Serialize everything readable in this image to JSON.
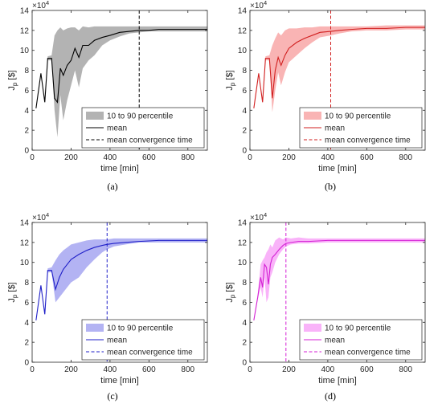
{
  "chart_data": [
    {
      "type": "area",
      "caption": "(a)",
      "x_exponent_label": "×10",
      "y_exponent": "4",
      "xlabel": "time [min]",
      "ylabel": "J",
      "ylabel_sub": "p",
      "ylabel_unit": " [$]",
      "xlim": [
        0,
        900
      ],
      "ylim": [
        0,
        14
      ],
      "xticks": [
        0,
        200,
        400,
        600,
        800
      ],
      "yticks": [
        0,
        2,
        4,
        6,
        8,
        10,
        12,
        14
      ],
      "convergence_time": 550,
      "colors": {
        "fill": "#b3b3b3",
        "line": "#000000"
      },
      "legend": {
        "placement": "bottom-right",
        "entries": [
          "10 to 90 percentile",
          "mean",
          "mean convergence time"
        ]
      },
      "mean": {
        "x": [
          20,
          45,
          65,
          80,
          100,
          115,
          130,
          145,
          160,
          180,
          200,
          220,
          240,
          260,
          290,
          320,
          360,
          400,
          450,
          500,
          550,
          600,
          650,
          700,
          800,
          900
        ],
        "y": [
          4.2,
          7.7,
          4.8,
          9.2,
          9.2,
          5.2,
          4.8,
          8.2,
          7.5,
          8.5,
          9.0,
          10.2,
          9.3,
          10.5,
          10.5,
          11.0,
          11.3,
          11.5,
          11.8,
          11.9,
          12.0,
          12.0,
          12.1,
          12.1,
          12.1,
          12.1
        ]
      },
      "p10": {
        "x": [
          20,
          45,
          65,
          80,
          100,
          115,
          130,
          145,
          160,
          180,
          200,
          220,
          240,
          260,
          290,
          320,
          360,
          400,
          450,
          500,
          550,
          600,
          650,
          700,
          800,
          900
        ],
        "y": [
          4.2,
          7.7,
          4.8,
          9.0,
          9.0,
          4.0,
          1.3,
          5.5,
          3.0,
          5.0,
          6.5,
          8.0,
          6.3,
          8.2,
          9.0,
          9.5,
          10.5,
          11.0,
          11.4,
          11.7,
          11.8,
          11.9,
          11.9,
          11.9,
          11.9,
          11.9
        ]
      },
      "p90": {
        "x": [
          20,
          45,
          65,
          80,
          100,
          115,
          130,
          145,
          160,
          180,
          200,
          220,
          240,
          260,
          290,
          320,
          360,
          400,
          450,
          500,
          550,
          600,
          650,
          700,
          800,
          900
        ],
        "y": [
          4.2,
          7.7,
          4.8,
          9.4,
          9.5,
          11.5,
          12.0,
          12.3,
          12.0,
          12.2,
          12.3,
          12.3,
          12.0,
          12.4,
          12.3,
          12.4,
          12.4,
          12.4,
          12.4,
          12.4,
          12.4,
          12.4,
          12.4,
          12.4,
          12.4,
          12.4
        ]
      }
    },
    {
      "type": "area",
      "caption": "(b)",
      "x_exponent_label": "×10",
      "y_exponent": "4",
      "xlabel": "time [min]",
      "ylabel": "J",
      "ylabel_sub": "p",
      "ylabel_unit": " [$]",
      "xlim": [
        0,
        900
      ],
      "ylim": [
        0,
        14
      ],
      "xticks": [
        0,
        200,
        400,
        600,
        800
      ],
      "yticks": [
        0,
        2,
        4,
        6,
        8,
        10,
        12,
        14
      ],
      "convergence_time": 415,
      "colors": {
        "fill": "#f9b4b4",
        "line": "#d11f1f"
      },
      "legend": {
        "placement": "bottom-right",
        "entries": [
          "10 to 90 percentile",
          "mean",
          "mean convergence time"
        ]
      },
      "mean": {
        "x": [
          20,
          45,
          65,
          80,
          100,
          115,
          130,
          145,
          160,
          180,
          200,
          240,
          280,
          320,
          360,
          415,
          460,
          520,
          600,
          700,
          800,
          900
        ],
        "y": [
          4.2,
          7.7,
          4.8,
          9.2,
          9.2,
          5.2,
          8.0,
          9.3,
          8.5,
          9.5,
          10.2,
          10.8,
          11.2,
          11.5,
          11.8,
          11.9,
          12.0,
          12.1,
          12.2,
          12.2,
          12.3,
          12.3
        ]
      },
      "p10": {
        "x": [
          20,
          45,
          65,
          80,
          100,
          115,
          130,
          145,
          160,
          180,
          200,
          240,
          280,
          320,
          360,
          415,
          460,
          520,
          600,
          700,
          800,
          900
        ],
        "y": [
          4.2,
          7.7,
          4.8,
          9.0,
          9.0,
          3.8,
          6.0,
          7.8,
          6.5,
          7.8,
          8.8,
          9.5,
          10.2,
          10.8,
          11.3,
          11.5,
          11.7,
          11.9,
          12.0,
          12.0,
          12.1,
          12.1
        ]
      },
      "p90": {
        "x": [
          20,
          45,
          65,
          80,
          100,
          115,
          130,
          145,
          160,
          180,
          200,
          240,
          280,
          320,
          360,
          415,
          460,
          520,
          600,
          700,
          800,
          900
        ],
        "y": [
          4.2,
          7.7,
          4.8,
          9.4,
          9.5,
          10.5,
          11.2,
          11.8,
          11.5,
          12.0,
          12.2,
          12.2,
          12.3,
          12.3,
          12.4,
          12.4,
          12.4,
          12.4,
          12.4,
          12.5,
          12.5,
          12.5
        ]
      }
    },
    {
      "type": "area",
      "caption": "(c)",
      "x_exponent_label": "×10",
      "y_exponent": "4",
      "xlabel": "time [min]",
      "ylabel": "J",
      "ylabel_sub": "p",
      "ylabel_unit": " [$]",
      "xlim": [
        0,
        900
      ],
      "ylim": [
        0,
        14
      ],
      "xticks": [
        0,
        200,
        400,
        600,
        800
      ],
      "yticks": [
        0,
        2,
        4,
        6,
        8,
        10,
        12,
        14
      ],
      "convergence_time": 385,
      "colors": {
        "fill": "#b3b3f3",
        "line": "#1f1fc8"
      },
      "legend": {
        "placement": "bottom-right",
        "entries": [
          "10 to 90 percentile",
          "mean",
          "mean convergence time"
        ]
      },
      "mean": {
        "x": [
          20,
          45,
          65,
          80,
          100,
          120,
          140,
          160,
          180,
          200,
          240,
          280,
          320,
          360,
          385,
          420,
          480,
          550,
          650,
          750,
          900
        ],
        "y": [
          4.2,
          7.7,
          4.8,
          9.2,
          9.2,
          7.3,
          8.5,
          9.3,
          9.8,
          10.3,
          10.8,
          11.2,
          11.5,
          11.7,
          11.8,
          11.9,
          12.0,
          12.1,
          12.2,
          12.2,
          12.2
        ]
      },
      "p10": {
        "x": [
          20,
          45,
          65,
          80,
          100,
          120,
          140,
          160,
          180,
          200,
          240,
          280,
          320,
          360,
          385,
          420,
          480,
          550,
          650,
          750,
          900
        ],
        "y": [
          4.2,
          7.7,
          4.8,
          9.0,
          9.0,
          6.0,
          6.5,
          7.0,
          7.5,
          8.0,
          8.5,
          9.5,
          10.3,
          11.0,
          11.3,
          11.6,
          11.8,
          12.0,
          12.0,
          12.0,
          12.0
        ]
      },
      "p90": {
        "x": [
          20,
          45,
          65,
          80,
          100,
          120,
          140,
          160,
          180,
          200,
          240,
          280,
          320,
          360,
          385,
          420,
          480,
          550,
          650,
          750,
          900
        ],
        "y": [
          4.2,
          7.7,
          4.8,
          9.4,
          9.5,
          10.2,
          10.8,
          11.2,
          11.5,
          11.8,
          12.0,
          12.2,
          12.3,
          12.3,
          12.3,
          12.4,
          12.4,
          12.4,
          12.4,
          12.4,
          12.4
        ]
      }
    },
    {
      "type": "area",
      "caption": "(d)",
      "x_exponent_label": "×10",
      "y_exponent": "4",
      "xlabel": "time [min]",
      "ylabel": "J",
      "ylabel_sub": "p",
      "ylabel_unit": " [$]",
      "xlim": [
        0,
        900
      ],
      "ylim": [
        0,
        14
      ],
      "xticks": [
        0,
        200,
        400,
        600,
        800
      ],
      "yticks": [
        0,
        2,
        4,
        6,
        8,
        10,
        12,
        14
      ],
      "convergence_time": 185,
      "colors": {
        "fill": "#f9b3f9",
        "line": "#d41fd4"
      },
      "legend": {
        "placement": "bottom-right",
        "entries": [
          "10 to 90 percentile",
          "mean",
          "mean convergence time"
        ]
      },
      "mean": {
        "x": [
          20,
          40,
          55,
          65,
          75,
          85,
          95,
          105,
          115,
          130,
          150,
          170,
          185,
          210,
          250,
          300,
          400,
          500,
          600,
          700,
          800,
          900
        ],
        "y": [
          4.2,
          6.5,
          8.5,
          7.5,
          9.8,
          9.5,
          7.8,
          9.8,
          10.5,
          10.8,
          11.3,
          11.7,
          11.9,
          12.0,
          12.1,
          12.1,
          12.2,
          12.2,
          12.2,
          12.2,
          12.2,
          12.2
        ]
      },
      "p10": {
        "x": [
          20,
          40,
          55,
          65,
          75,
          85,
          95,
          105,
          115,
          130,
          150,
          170,
          185,
          210,
          250,
          300,
          400,
          500,
          600,
          700,
          800,
          900
        ],
        "y": [
          4.2,
          6.3,
          7.5,
          6.5,
          8.5,
          6.0,
          6.5,
          8.5,
          9.0,
          10.0,
          10.8,
          11.3,
          11.6,
          11.8,
          11.9,
          11.9,
          12.0,
          12.0,
          12.0,
          12.0,
          12.0,
          12.0
        ]
      },
      "p90": {
        "x": [
          20,
          40,
          55,
          65,
          75,
          85,
          95,
          105,
          115,
          130,
          150,
          170,
          185,
          210,
          250,
          300,
          400,
          500,
          600,
          700,
          800,
          900
        ],
        "y": [
          4.2,
          6.8,
          9.8,
          10.2,
          10.5,
          11.0,
          11.3,
          11.8,
          11.5,
          12.2,
          12.5,
          12.3,
          12.5,
          12.4,
          12.5,
          12.4,
          12.4,
          12.4,
          12.4,
          12.4,
          12.4,
          12.4
        ]
      }
    }
  ]
}
